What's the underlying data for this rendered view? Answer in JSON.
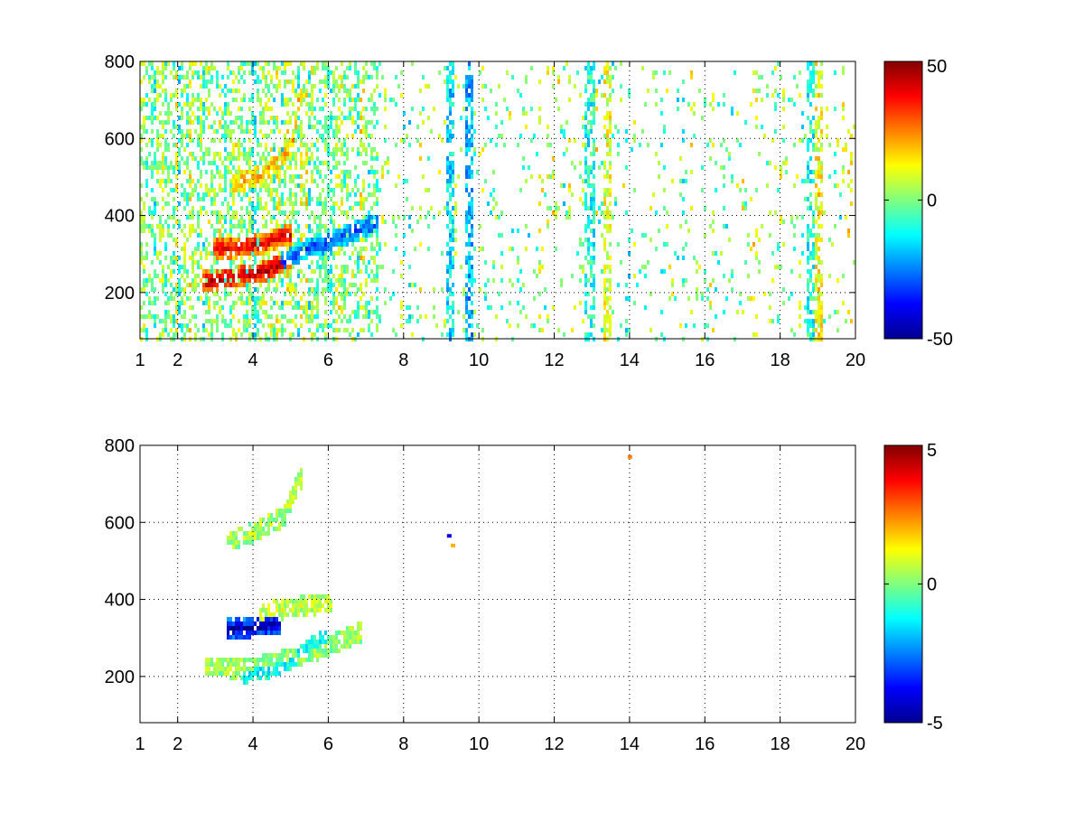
{
  "chart_data": [
    {
      "type": "heatmap",
      "colormap": "jet",
      "x_ticks": [
        "1",
        "2",
        "4",
        "6",
        "8",
        "10",
        "12",
        "14",
        "16",
        "18",
        "20"
      ],
      "x_tick_values": [
        1,
        2,
        4,
        6,
        8,
        10,
        12,
        14,
        16,
        18,
        20
      ],
      "y_ticks": [
        "200",
        "400",
        "600",
        "800"
      ],
      "y_tick_values": [
        200,
        400,
        600,
        800
      ],
      "xlim": [
        1,
        20
      ],
      "ylim": [
        80,
        800
      ],
      "grid": true,
      "colorbar": {
        "ticks": [
          "50",
          "0",
          "-50"
        ],
        "tick_values": [
          50,
          0,
          -50
        ],
        "clim": [
          -50,
          50
        ]
      },
      "features": [
        {
          "desc": "lower band",
          "x": [
            2.7,
            3.5,
            4.3,
            4.9
          ],
          "y": [
            235,
            245,
            262,
            290
          ],
          "value": 45
        },
        {
          "desc": "upper band",
          "x": [
            3.0,
            3.6,
            4.2,
            4.9
          ],
          "y": [
            320,
            322,
            332,
            355
          ],
          "value": 40
        },
        {
          "desc": "negative band",
          "x": [
            4.8,
            5.4,
            6.2,
            7.2
          ],
          "y": [
            285,
            320,
            345,
            385
          ],
          "value": -30
        },
        {
          "desc": "upper branch",
          "x": [
            3.5,
            4.2,
            5.0,
            5.2
          ],
          "y": [
            490,
            510,
            580,
            720
          ],
          "value": 20
        }
      ],
      "noise_columns": [
        {
          "x": 9.2,
          "value": -15
        },
        {
          "x": 9.7,
          "value": -20
        },
        {
          "x": 12.9,
          "value": -10
        },
        {
          "x": 13.4,
          "value": 10
        },
        {
          "x": 18.8,
          "value": -10
        },
        {
          "x": 19.0,
          "value": 12
        }
      ],
      "noise_extent_x": [
        1,
        20
      ]
    },
    {
      "type": "heatmap",
      "colormap": "jet",
      "x_ticks": [
        "1",
        "2",
        "4",
        "6",
        "8",
        "10",
        "12",
        "14",
        "16",
        "18",
        "20"
      ],
      "x_tick_values": [
        1,
        2,
        4,
        6,
        8,
        10,
        12,
        14,
        16,
        18,
        20
      ],
      "y_ticks": [
        "200",
        "400",
        "600",
        "800"
      ],
      "y_tick_values": [
        200,
        400,
        600,
        800
      ],
      "xlim": [
        1,
        20
      ],
      "ylim": [
        80,
        800
      ],
      "grid": true,
      "colorbar": {
        "ticks": [
          "5",
          "0",
          "-5"
        ],
        "tick_values": [
          5,
          0,
          -5
        ],
        "clim": [
          -5,
          5
        ]
      },
      "features": [
        {
          "desc": "blue band",
          "x": [
            3.4,
            3.8,
            4.2,
            4.6
          ],
          "y": [
            330,
            330,
            335,
            345
          ],
          "value": -4.5
        },
        {
          "desc": "lower green band",
          "x": [
            2.8,
            3.6,
            4.5,
            5.6,
            6.8
          ],
          "y": [
            230,
            225,
            240,
            270,
            320
          ],
          "value": 0.3
        },
        {
          "desc": "cyan band",
          "x": [
            3.8,
            4.5,
            5.2,
            5.8
          ],
          "y": [
            215,
            230,
            260,
            300
          ],
          "value": -1.5
        },
        {
          "desc": "upper branch",
          "x": [
            3.4,
            4.0,
            4.8,
            5.2
          ],
          "y": [
            560,
            580,
            620,
            720
          ],
          "value": 0.5
        },
        {
          "desc": "mid band",
          "x": [
            4.2,
            4.8,
            5.4,
            6.0
          ],
          "y": [
            370,
            380,
            390,
            395
          ],
          "value": 0.8
        }
      ],
      "noise_columns": [],
      "noise_extent_x": [
        2.5,
        7.2
      ],
      "isolated_points": [
        {
          "x": 14.0,
          "y": 770,
          "value": 2.5
        },
        {
          "x": 9.2,
          "y": 565,
          "value": -4
        },
        {
          "x": 9.3,
          "y": 540,
          "value": 2
        }
      ]
    }
  ]
}
